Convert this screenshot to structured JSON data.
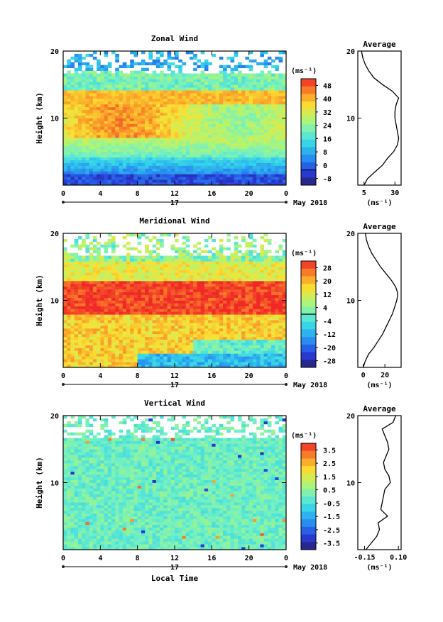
{
  "chart_data": [
    {
      "type": "heatmap",
      "title": "Zonal Wind",
      "ylabel": "Height (km)",
      "ylim": [
        0,
        20
      ],
      "yticks": [
        "10",
        "20"
      ],
      "xlim": [
        0,
        24
      ],
      "xticks": [
        "0",
        "4",
        "8",
        "12",
        "16",
        "20",
        "0"
      ],
      "day_label": "17",
      "date_label": "May 2018",
      "colorbar": {
        "unit": "(ms⁻¹)",
        "min": -8,
        "max": 48,
        "ticks": [
          "48",
          "40",
          "32",
          "24",
          "16",
          "8",
          "0",
          "-8"
        ],
        "zero_line": 0
      },
      "profile": {
        "title": "Average",
        "xlabel": "(ms⁻¹)",
        "xlim": [
          0,
          35
        ],
        "xticks": [
          "5",
          "30"
        ],
        "height": [
          0,
          1,
          2,
          3,
          4,
          5,
          6,
          7,
          8,
          9,
          10,
          11,
          12,
          13,
          14,
          15,
          16,
          17,
          18,
          19,
          20
        ],
        "value": [
          5,
          8,
          14,
          20,
          24,
          29,
          32,
          33,
          32,
          31,
          30,
          30,
          31,
          33,
          28,
          20,
          13,
          9,
          6,
          4,
          3
        ]
      }
    },
    {
      "type": "heatmap",
      "title": "Meridional Wind",
      "ylabel": "Height (km)",
      "ylim": [
        0,
        20
      ],
      "yticks": [
        "10",
        "20"
      ],
      "xlim": [
        0,
        24
      ],
      "xticks": [
        "0",
        "4",
        "8",
        "12",
        "16",
        "20",
        "0"
      ],
      "day_label": "17",
      "date_label": "May 2018",
      "colorbar": {
        "unit": "(ms⁻¹)",
        "min": -28,
        "max": 28,
        "ticks": [
          "28",
          "20",
          "12",
          "4",
          "-4",
          "-12",
          "-20",
          "-28"
        ],
        "zero_line": 0
      },
      "profile": {
        "title": "Average",
        "xlabel": "(ms⁻¹)",
        "xlim": [
          -5,
          35
        ],
        "xticks": [
          "0",
          "20"
        ],
        "height": [
          0,
          1,
          2,
          3,
          4,
          5,
          6,
          7,
          8,
          9,
          10,
          11,
          12,
          13,
          14,
          15,
          16,
          17,
          18,
          19,
          20
        ],
        "value": [
          0,
          2,
          5,
          10,
          14,
          18,
          21,
          24,
          27,
          29,
          31,
          32,
          30,
          26,
          21,
          16,
          12,
          8,
          5,
          3,
          2
        ]
      }
    },
    {
      "type": "heatmap",
      "title": "Vertical Wind",
      "ylabel": "Height (km)",
      "ylim": [
        0,
        20
      ],
      "yticks": [
        "10",
        "20"
      ],
      "xlim": [
        0,
        24
      ],
      "xticks": [
        "0",
        "4",
        "8",
        "12",
        "16",
        "20",
        "0"
      ],
      "day_label": "17",
      "date_label": "May 2018",
      "xlabel": "Local Time",
      "colorbar": {
        "unit": "(ms⁻¹)",
        "min": -4,
        "max": 4,
        "ticks": [
          "3.5",
          "2.5",
          "1.5",
          "0.5",
          "-0.5",
          "-1.5",
          "-2.5",
          "-3.5"
        ],
        "zero_line": null
      },
      "profile": {
        "title": "Average",
        "xlabel": "(ms⁻¹)",
        "xlim": [
          -0.2,
          0.12
        ],
        "xticks": [
          "-0.15",
          "0.10"
        ],
        "height": [
          0,
          1,
          2,
          3,
          4,
          5,
          6,
          7,
          8,
          9,
          10,
          11,
          12,
          13,
          14,
          15,
          16,
          17,
          18,
          19,
          20
        ],
        "value": [
          -0.14,
          -0.1,
          -0.06,
          -0.04,
          -0.05,
          0.02,
          -0.03,
          -0.02,
          -0.01,
          0.0,
          0.04,
          0.03,
          0.0,
          -0.01,
          0.01,
          0.03,
          0.02,
          0.0,
          -0.02,
          0.06,
          0.08
        ]
      }
    }
  ]
}
